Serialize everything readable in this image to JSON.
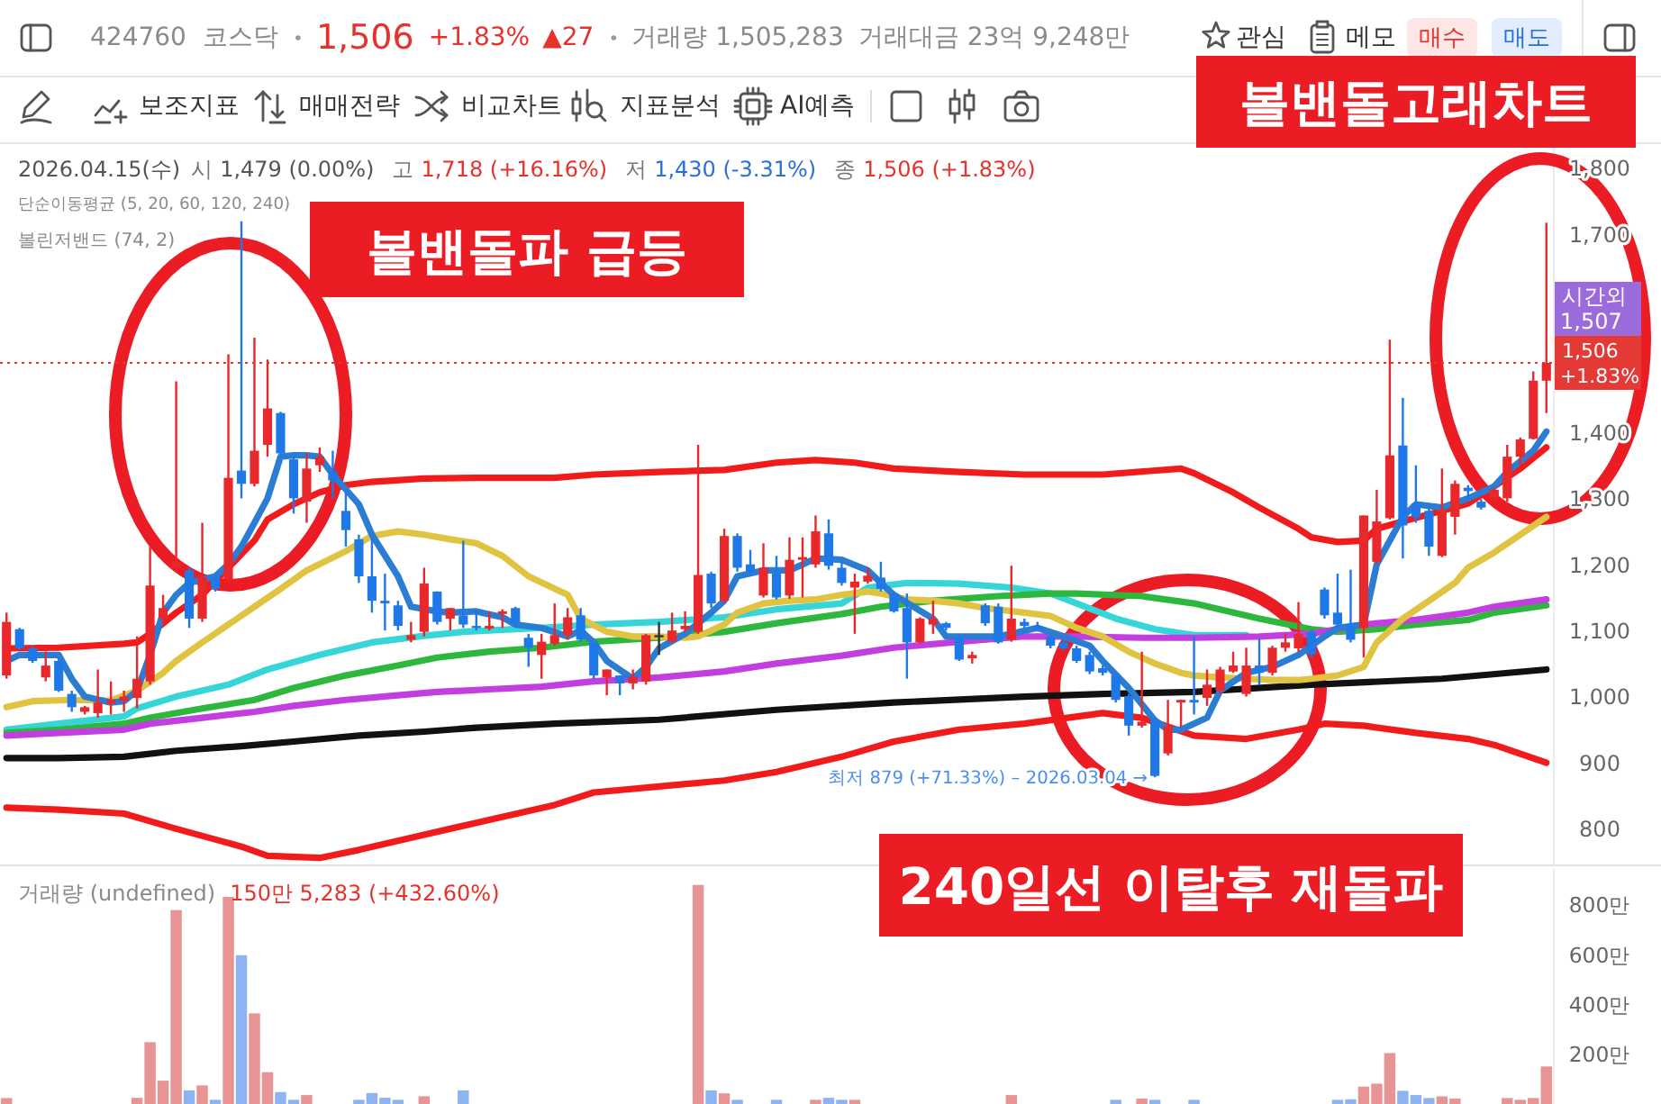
{
  "chart_data": [
    {
      "type": "other",
      "title": "볼밴돌고래차트",
      "annotations": [
        "424760",
        "코스닥",
        "1,506",
        "+1.83%",
        "▲27",
        "거래량 1,505,283",
        "거래대금 23억 9,248만",
        "관심",
        "메모",
        "매수",
        "매도",
        "보조지표",
        "매매전략",
        "비교차트",
        "지표분석",
        "AI예측",
        "2026.04.15(수)",
        "시",
        "1,479 (0.00%)",
        "고",
        "1,718 (+16.16%)",
        "저",
        "1,430 (-3.31%)",
        "종",
        "1,506 (+1.83%)"
      ]
    },
    {
      "type": "candlestick",
      "tick_labels": "y",
      "categories": [
        null,
        null,
        null,
        null,
        null,
        null,
        null,
        null,
        null,
        null,
        null,
        null,
        null,
        null,
        null,
        null,
        null,
        null,
        null,
        null,
        null,
        null,
        null,
        null,
        null,
        null,
        null,
        null,
        null,
        null,
        null,
        null,
        null,
        null,
        null,
        null,
        null,
        null,
        null,
        null,
        null,
        null,
        null,
        null,
        null,
        null,
        null,
        null,
        null,
        null,
        null,
        null,
        null,
        null,
        null,
        null,
        null,
        null,
        null,
        null,
        null,
        null,
        null,
        null,
        null,
        null,
        null,
        null,
        null,
        null,
        null,
        null,
        null,
        null,
        null,
        null,
        null,
        null,
        null,
        null,
        null,
        null,
        null,
        null,
        null,
        null,
        null,
        null,
        null,
        null,
        null,
        null,
        null,
        null,
        null,
        null,
        null,
        null,
        null,
        null,
        null,
        null,
        null,
        null,
        null,
        null,
        null,
        null,
        null,
        null,
        null,
        null,
        null,
        null,
        null,
        null,
        null,
        null,
        null
      ],
      "ohlc": [
        [
          1033,
          1128,
          1028,
          1114
        ],
        [
          1103,
          1105,
          1072,
          1074
        ],
        [
          1074,
          1078,
          1052,
          1055
        ],
        [
          1030,
          1069,
          1024,
          1048
        ],
        [
          1055,
          1057,
          1008,
          1010
        ],
        [
          1005,
          1010,
          978,
          985
        ],
        [
          978,
          987,
          974,
          985
        ],
        [
          976,
          1042,
          969,
          992
        ],
        [
          990,
          1024,
          974,
          996
        ],
        [
          995,
          1010,
          978,
          1001
        ],
        [
          999,
          1092,
          983,
          1028
        ],
        [
          1024,
          1228,
          1019,
          1169
        ],
        [
          1119,
          1155,
          1110,
          1135
        ],
        [
          1196,
          1478,
          1190,
          1205
        ],
        [
          1192,
          1196,
          1105,
          1119
        ],
        [
          1119,
          1264,
          1114,
          1182
        ],
        [
          1182,
          1187,
          1160,
          1164
        ],
        [
          1178,
          1519,
          1173,
          1332
        ],
        [
          1343,
          1720,
          1301,
          1323
        ],
        [
          1323,
          1544,
          1319,
          1373
        ],
        [
          1382,
          1511,
          1364,
          1437
        ],
        [
          1430,
          1432,
          1364,
          1369
        ],
        [
          1360,
          1364,
          1278,
          1301
        ],
        [
          1296,
          1369,
          1264,
          1346
        ],
        [
          1351,
          1378,
          1341,
          1364
        ],
        [
          1342,
          1373,
          1301,
          1328
        ],
        [
          1282,
          1310,
          1228,
          1253
        ],
        [
          1239,
          1246,
          1173,
          1183
        ],
        [
          1183,
          1242,
          1128,
          1146
        ],
        [
          1146,
          1187,
          1101,
          1142
        ],
        [
          1139,
          1146,
          1101,
          1108
        ],
        [
          1087,
          1114,
          1083,
          1094
        ],
        [
          1099,
          1196,
          1092,
          1172
        ],
        [
          1160,
          1160,
          1110,
          1114
        ],
        [
          1119,
          1135,
          1101,
          1135
        ],
        [
          1124,
          1237,
          1105,
          1110
        ],
        [
          1108,
          1133,
          1101,
          1105
        ],
        [
          1104,
          1130,
          1101,
          1108
        ],
        [
          1126,
          1133,
          1105,
          1130
        ],
        [
          1135,
          1137,
          1108,
          1112
        ],
        [
          1090,
          1096,
          1046,
          1075
        ],
        [
          1064,
          1096,
          1028,
          1084
        ],
        [
          1081,
          1142,
          1078,
          1094
        ],
        [
          1094,
          1135,
          1087,
          1121
        ],
        [
          1124,
          1135,
          1084,
          1087
        ],
        [
          1083,
          1084,
          1028,
          1033
        ],
        [
          1030,
          1042,
          1003,
          1042
        ],
        [
          1033,
          1033,
          1003,
          1021
        ],
        [
          1021,
          1042,
          1012,
          1031
        ],
        [
          1024,
          1096,
          1019,
          1094
        ],
        [
          1094,
          1114,
          1064,
          1094
        ],
        [
          1084,
          1128,
          1083,
          1101
        ],
        [
          1103,
          1130,
          1099,
          1108
        ],
        [
          1099,
          1382,
          1096,
          1185
        ],
        [
          1187,
          1190,
          1135,
          1142
        ],
        [
          1146,
          1255,
          1142,
          1244
        ],
        [
          1244,
          1248,
          1190,
          1196
        ],
        [
          1201,
          1223,
          1183,
          1190
        ],
        [
          1154,
          1233,
          1151,
          1196
        ],
        [
          1187,
          1214,
          1148,
          1151
        ],
        [
          1154,
          1242,
          1149,
          1208
        ],
        [
          1208,
          1242,
          1151,
          1212
        ],
        [
          1201,
          1275,
          1196,
          1251
        ],
        [
          1248,
          1269,
          1193,
          1199
        ],
        [
          1196,
          1205,
          1169,
          1173
        ],
        [
          1166,
          1187,
          1096,
          1175
        ],
        [
          1175,
          1196,
          1172,
          1184
        ],
        [
          1181,
          1205,
          1160,
          1164
        ],
        [
          1157,
          1160,
          1128,
          1130
        ],
        [
          1135,
          1157,
          1028,
          1083
        ],
        [
          1083,
          1121,
          1081,
          1119
        ],
        [
          1110,
          1146,
          1096,
          1119
        ],
        [
          1112,
          1114,
          1101,
          1105
        ],
        [
          1090,
          1096,
          1055,
          1057
        ],
        [
          1059,
          1069,
          1051,
          1064
        ],
        [
          1139,
          1142,
          1108,
          1112
        ],
        [
          1137,
          1142,
          1081,
          1083
        ],
        [
          1087,
          1199,
          1084,
          1119
        ],
        [
          1114,
          1119,
          1105,
          1108
        ],
        [
          1108,
          1114,
          1101,
          1103
        ],
        [
          1092,
          1096,
          1074,
          1078
        ],
        [
          1083,
          1087,
          1071,
          1074
        ],
        [
          1074,
          1078,
          1052,
          1055
        ],
        [
          1064,
          1069,
          1035,
          1039
        ],
        [
          1044,
          1048,
          1033,
          1037
        ],
        [
          1033,
          1037,
          992,
          996
        ],
        [
          1001,
          1005,
          942,
          957
        ],
        [
          957,
          1069,
          954,
          963
        ],
        [
          965,
          969,
          879,
          881
        ],
        [
          915,
          996,
          912,
          956
        ],
        [
          992,
          996,
          955,
          996
        ],
        [
          996,
          1092,
          974,
          992
        ],
        [
          999,
          1042,
          987,
          1019
        ],
        [
          1010,
          1046,
          1005,
          1042
        ],
        [
          1039,
          1069,
          1037,
          1048
        ],
        [
          1005,
          1075,
          1001,
          1048
        ],
        [
          1048,
          1090,
          1019,
          1037
        ],
        [
          1037,
          1078,
          1033,
          1075
        ],
        [
          1075,
          1096,
          1069,
          1083
        ],
        [
          1074,
          1144,
          1069,
          1096
        ],
        [
          1099,
          1103,
          1060,
          1065
        ],
        [
          1163,
          1166,
          1119,
          1124
        ],
        [
          1128,
          1187,
          1105,
          1110
        ],
        [
          1110,
          1193,
          1083,
          1087
        ],
        [
          1105,
          1275,
          1060,
          1275
        ],
        [
          1205,
          1314,
          1202,
          1266
        ],
        [
          1271,
          1541,
          1269,
          1366
        ],
        [
          1381,
          1453,
          1210,
          1260
        ],
        [
          1293,
          1351,
          1264,
          1272
        ],
        [
          1282,
          1287,
          1214,
          1228
        ],
        [
          1214,
          1346,
          1212,
          1284
        ],
        [
          1273,
          1328,
          1246,
          1323
        ],
        [
          1317,
          1321,
          1301,
          1312
        ],
        [
          1296,
          1300,
          1284,
          1287
        ],
        [
          1301,
          1317,
          1296,
          1314
        ],
        [
          1301,
          1382,
          1296,
          1364
        ],
        [
          1364,
          1393,
          1351,
          1390
        ],
        [
          1391,
          1493,
          1390,
          1479
        ],
        [
          1479,
          1718,
          1430,
          1506
        ]
      ],
      "series": [
        {
          "type": "line",
          "color": "#111111",
          "values": [
            908,
            null,
            null,
            null,
            908,
            null,
            null,
            null,
            null,
            910,
            null,
            null,
            null,
            919,
            null,
            null,
            null,
            null,
            926,
            null,
            null,
            null,
            933,
            null,
            null,
            null,
            null,
            942,
            null,
            null,
            null,
            null,
            948,
            null,
            null,
            null,
            954,
            null,
            null,
            null,
            null,
            null,
            960,
            null,
            null,
            null,
            null,
            null,
            null,
            null,
            966,
            null,
            null,
            null,
            null,
            null,
            null,
            null,
            null,
            981,
            null,
            null,
            null,
            null,
            null,
            null,
            null,
            null,
            992,
            null,
            null,
            null,
            null,
            null,
            null,
            null,
            null,
            null,
            1001,
            null,
            null,
            null,
            null,
            null,
            1005,
            null,
            null,
            null,
            null,
            null,
            null,
            1008,
            null,
            null,
            null,
            null,
            null,
            null,
            null,
            null,
            1019,
            null,
            null,
            null,
            null,
            null,
            null,
            null,
            null,
            null,
            1028,
            null,
            null,
            null,
            null,
            null,
            null,
            null,
            1042
          ]
        },
        {
          "type": "line",
          "color": "#f21b1b",
          "values": [
            833,
            null,
            null,
            null,
            830,
            null,
            null,
            null,
            null,
            824,
            null,
            null,
            null,
            801,
            null,
            null,
            null,
            null,
            774,
            null,
            760,
            null,
            null,
            null,
            757,
            null,
            null,
            769,
            null,
            null,
            null,
            null,
            792,
            null,
            null,
            null,
            810,
            null,
            null,
            null,
            null,
            null,
            837,
            null,
            null,
            856,
            null,
            null,
            null,
            null,
            865,
            null,
            null,
            null,
            null,
            874,
            null,
            null,
            null,
            887,
            null,
            null,
            null,
            null,
            910,
            null,
            null,
            null,
            933,
            null,
            null,
            null,
            null,
            951,
            null,
            null,
            null,
            null,
            960,
            null,
            null,
            null,
            null,
            null,
            976,
            null,
            null,
            969,
            null,
            null,
            null,
            942,
            null,
            null,
            null,
            937,
            null,
            null,
            null,
            951,
            null,
            960,
            null,
            null,
            957,
            null,
            null,
            null,
            946,
            null,
            null,
            null,
            937,
            null,
            928,
            null,
            null,
            null,
            901
          ]
        },
        {
          "type": "line",
          "color": "#35d5d8",
          "values": [
            951,
            null,
            null,
            null,
            960,
            null,
            null,
            null,
            null,
            971,
            983,
            null,
            null,
            1001,
            null,
            null,
            null,
            1019,
            null,
            null,
            1042,
            null,
            null,
            null,
            1064,
            null,
            null,
            null,
            1083,
            null,
            null,
            null,
            1093,
            null,
            null,
            1099,
            null,
            null,
            null,
            1103,
            null,
            1105,
            null,
            null,
            null,
            1110,
            null,
            null,
            null,
            null,
            1114,
            null,
            null,
            null,
            null,
            1121,
            null,
            null,
            null,
            1133,
            null,
            null,
            null,
            null,
            1142,
            null,
            1166,
            null,
            null,
            1173,
            null,
            null,
            null,
            1172,
            null,
            null,
            null,
            1166,
            null,
            null,
            1157,
            null,
            1142,
            null,
            null,
            1119,
            null,
            null,
            1103,
            null,
            null,
            1094,
            null,
            null,
            null,
            1094,
            null,
            null,
            null,
            null,
            null,
            null,
            null,
            null,
            null,
            null,
            null,
            null,
            null,
            null,
            null,
            null,
            null,
            null,
            null,
            null,
            null,
            null,
            null
          ]
        },
        {
          "type": "line",
          "color": "#2db83d",
          "values": [
            946,
            null,
            null,
            null,
            951,
            null,
            null,
            null,
            null,
            960,
            null,
            969,
            null,
            null,
            null,
            983,
            null,
            null,
            null,
            996,
            null,
            null,
            1014,
            null,
            null,
            null,
            1033,
            null,
            null,
            null,
            1048,
            null,
            null,
            1060,
            null,
            null,
            null,
            1069,
            null,
            null,
            null,
            1075,
            null,
            null,
            null,
            1084,
            null,
            null,
            null,
            null,
            1090,
            null,
            null,
            null,
            null,
            1099,
            null,
            null,
            null,
            1112,
            null,
            null,
            null,
            null,
            1126,
            null,
            null,
            1137,
            null,
            null,
            null,
            1146,
            null,
            null,
            null,
            null,
            1153,
            null,
            null,
            null,
            1157,
            null,
            1157,
            null,
            null,
            null,
            null,
            1153,
            null,
            null,
            null,
            1142,
            null,
            null,
            null,
            null,
            1119,
            null,
            null,
            null,
            1103,
            null,
            1099,
            null,
            null,
            1103,
            null,
            null,
            1110,
            null,
            null,
            null,
            1117,
            null,
            1128,
            null,
            null,
            null,
            1139
          ]
        },
        {
          "type": "line",
          "color": "#c23ee0",
          "values": [
            942,
            null,
            null,
            null,
            946,
            null,
            null,
            null,
            null,
            951,
            null,
            960,
            null,
            null,
            null,
            969,
            null,
            null,
            null,
            978,
            null,
            null,
            987,
            null,
            null,
            null,
            996,
            null,
            null,
            null,
            1003,
            null,
            null,
            1008,
            null,
            null,
            null,
            1012,
            null,
            null,
            null,
            1016,
            null,
            null,
            null,
            1024,
            null,
            null,
            null,
            null,
            1030,
            null,
            null,
            null,
            null,
            1039,
            null,
            null,
            null,
            1051,
            null,
            null,
            null,
            null,
            1063,
            null,
            null,
            null,
            1075,
            null,
            null,
            null,
            null,
            1084,
            null,
            null,
            null,
            null,
            1092,
            null,
            null,
            null,
            1092,
            null,
            null,
            null,
            null,
            1090,
            null,
            null,
            null,
            1090,
            null,
            null,
            null,
            null,
            1092,
            null,
            null,
            null,
            1096,
            null,
            null,
            null,
            1110,
            null,
            null,
            null,
            1117,
            null,
            null,
            null,
            1128,
            null,
            1137,
            null,
            null,
            null,
            1148
          ]
        },
        {
          "type": "line",
          "color": "#e0c340",
          "values": [
            985,
            null,
            994,
            null,
            null,
            996,
            null,
            null,
            995,
            null,
            1010,
            null,
            1037,
            1055,
            null,
            1083,
            null,
            1110,
            null,
            1137,
            null,
            1164,
            null,
            1192,
            null,
            null,
            1221,
            null,
            1244,
            null,
            1251,
            null,
            1246,
            null,
            1239,
            null,
            1233,
            null,
            1214,
            null,
            1183,
            null,
            null,
            1155,
            1119,
            null,
            1099,
            null,
            1092,
            null,
            1092,
            null,
            1090,
            1092,
            null,
            1110,
            1128,
            null,
            1142,
            null,
            1146,
            null,
            1148,
            null,
            1155,
            null,
            1160,
            1157,
            null,
            1148,
            null,
            1146,
            null,
            1142,
            null,
            1135,
            null,
            null,
            1128,
            null,
            1123,
            null,
            1105,
            null,
            1092,
            null,
            1069,
            null,
            1051,
            null,
            1037,
            1033,
            null,
            1030,
            null,
            1028,
            null,
            1026,
            null,
            1026,
            1028,
            null,
            1033,
            null,
            1046,
            1083,
            null,
            1119,
            null,
            1146,
            null,
            1173,
            1196,
            null,
            1219,
            null,
            1246,
            null,
            1273
          ]
        },
        {
          "type": "line",
          "color": "#f21b1b",
          "values": [
            1074,
            null,
            null,
            null,
            1075,
            null,
            null,
            null,
            null,
            1081,
            1083,
            1096,
            null,
            1128,
            null,
            1155,
            null,
            1196,
            null,
            1237,
            1269,
            null,
            1292,
            null,
            1310,
            null,
            1321,
            null,
            1326,
            null,
            null,
            null,
            1331,
            null,
            null,
            null,
            1332,
            null,
            null,
            null,
            null,
            null,
            1332,
            null,
            null,
            1337,
            null,
            null,
            null,
            null,
            1341,
            null,
            null,
            null,
            null,
            1344,
            null,
            null,
            null,
            1355,
            null,
            null,
            1359,
            null,
            null,
            1355,
            null,
            null,
            1346,
            null,
            null,
            null,
            null,
            1341,
            null,
            null,
            null,
            null,
            1337,
            null,
            null,
            null,
            null,
            null,
            1337,
            null,
            null,
            null,
            null,
            null,
            1346,
            1339,
            null,
            null,
            1310,
            null,
            1287,
            null,
            null,
            1255,
            1242,
            null,
            1235,
            null,
            1237,
            1255,
            null,
            1266,
            null,
            null,
            1282,
            null,
            1293,
            null,
            1319,
            null,
            1346,
            null,
            1378
          ]
        },
        {
          "type": "line",
          "color": "#2b7cd3",
          "values": [
            1055,
            1064,
            null,
            null,
            1064,
            1028,
            1001,
            null,
            992,
            994,
            1010,
            1064,
            1128,
            1155,
            1173,
            null,
            1183,
            1201,
            1228,
            1264,
            1301,
            1364,
            1366,
            1366,
            1364,
            1337,
            null,
            1292,
            1246,
            null,
            1183,
            1137,
            null,
            1130,
            1128,
            null,
            1130,
            null,
            1121,
            1110,
            null,
            1105,
            null,
            1092,
            1101,
            1083,
            1055,
            null,
            1028,
            1046,
            1074,
            null,
            1096,
            null,
            1128,
            1146,
            1183,
            null,
            1192,
            null,
            1192,
            null,
            1210,
            null,
            1208,
            null,
            1192,
            1173,
            1155,
            null,
            null,
            1119,
            1092,
            null,
            1092,
            null,
            1092,
            1096,
            null,
            1105,
            null,
            1092,
            null,
            1078,
            1055,
            null,
            1014,
            null,
            965,
            951,
            951,
            null,
            969,
            1010,
            null,
            1037,
            null,
            1046,
            null,
            1064,
            null,
            1092,
            1105,
            null,
            1110,
            1201,
            null,
            1273,
            1292,
            null,
            1287,
            null,
            1301,
            null,
            1319,
            1341,
            null,
            1373,
            1402
          ]
        }
      ],
      "ylim": [
        747,
        1837
      ],
      "yticks": [
        800,
        900,
        {
          "value": 1000,
          "label": "1,000"
        },
        {
          "value": 1100,
          "label": "1,100"
        },
        {
          "value": 1200,
          "label": "1,200"
        },
        {
          "value": 1300,
          "label": "1,300"
        },
        {
          "value": 1400,
          "label": "1,400"
        },
        {
          "value": 1700,
          "label": "1,700"
        },
        {
          "value": 1800,
          "label": "1,800"
        }
      ],
      "ref_lines": [
        {
          "axis": "y",
          "value": 1506,
          "label": "1,506 +1.83%",
          "color": "#e53935",
          "line_style": "dotted"
        }
      ],
      "annotations": [
        "단순이동평균 (5, 20, 60, 120, 240)",
        "볼린저밴드 (74, 2)",
        "볼밴돌파 급등",
        "240일선 이탈후 재돌파",
        "최저 879 (+71.33%) – 2026.03.04 →",
        "시간외 1,507"
      ]
    },
    {
      "type": "bar",
      "tick_labels": "y",
      "categories": [
        null,
        null,
        null,
        null,
        null,
        null,
        null,
        null,
        null,
        null,
        null,
        null,
        null,
        null,
        null,
        null,
        null,
        null,
        null,
        null,
        null,
        null,
        null,
        null,
        null,
        null,
        null,
        null,
        null,
        null,
        null,
        null,
        null,
        null,
        null,
        null,
        null,
        null,
        null,
        null,
        null,
        null,
        null,
        null,
        null,
        null,
        null,
        null,
        null,
        null,
        null,
        null,
        null,
        null,
        null,
        null,
        null,
        null,
        null,
        null,
        null,
        null,
        null,
        null,
        null,
        null,
        null,
        null,
        null,
        null,
        null,
        null,
        null,
        null,
        null,
        null,
        null,
        null,
        null,
        null,
        null,
        null,
        null,
        null,
        null,
        null,
        null,
        null,
        null,
        null,
        null,
        null,
        null,
        null,
        null,
        null,
        null,
        null,
        null,
        null,
        null,
        null,
        null,
        null,
        null,
        null,
        null,
        null,
        null,
        null,
        null,
        null,
        null,
        null,
        null,
        null,
        null,
        null,
        null
      ],
      "values": [
        24,
        null,
        null,
        null,
        null,
        null,
        null,
        null,
        null,
        null,
        25,
        249,
        94,
        781,
        55,
        75,
        17,
        834,
        599,
        365,
        128,
        48,
        17,
        36,
        null,
        null,
        null,
        17,
        44,
        25,
        17,
        null,
        31,
        null,
        null,
        55,
        null,
        null,
        null,
        null,
        null,
        null,
        null,
        null,
        null,
        null,
        null,
        null,
        null,
        null,
        null,
        null,
        null,
        882,
        55,
        43,
        17,
        null,
        null,
        17,
        null,
        null,
        17,
        25,
        17,
        17,
        null,
        null,
        null,
        null,
        null,
        null,
        null,
        null,
        null,
        null,
        null,
        36,
        null,
        null,
        null,
        null,
        null,
        null,
        null,
        17,
        null,
        22,
        17,
        null,
        null,
        17,
        null,
        null,
        null,
        null,
        null,
        null,
        null,
        null,
        null,
        null,
        17,
        19,
        70,
        82,
        205,
        53,
        36,
        24,
        31,
        22,
        null,
        null,
        null,
        24,
        17,
        24,
        151
      ],
      "colors": [
        "#e99494",
        null,
        null,
        null,
        null,
        null,
        null,
        null,
        null,
        null,
        "#e99494",
        "#e99494",
        "#e99494",
        "#e99494",
        "#8db4f0",
        "#e99494",
        "#8db4f0",
        "#e99494",
        "#8db4f0",
        "#e99494",
        "#e99494",
        "#8db4f0",
        "#8db4f0",
        "#e99494",
        null,
        null,
        null,
        "#8db4f0",
        "#8db4f0",
        "#8db4f0",
        "#8db4f0",
        null,
        "#e99494",
        null,
        null,
        "#8db4f0",
        null,
        null,
        null,
        null,
        null,
        null,
        null,
        null,
        null,
        null,
        null,
        null,
        null,
        null,
        null,
        null,
        null,
        "#e99494",
        "#8db4f0",
        "#e99494",
        "#8db4f0",
        null,
        null,
        "#8db4f0",
        null,
        null,
        "#e99494",
        "#8db4f0",
        "#8db4f0",
        "#e99494",
        null,
        null,
        null,
        null,
        null,
        null,
        null,
        null,
        null,
        null,
        null,
        "#e99494",
        null,
        null,
        null,
        null,
        null,
        null,
        null,
        "#8db4f0",
        null,
        "#e99494",
        "#8db4f0",
        null,
        null,
        "#8db4f0",
        null,
        null,
        null,
        null,
        null,
        null,
        null,
        null,
        null,
        null,
        "#8db4f0",
        "#8db4f0",
        "#e99494",
        "#e99494",
        "#e99494",
        "#8db4f0",
        "#8db4f0",
        "#8db4f0",
        "#e99494",
        "#e99494",
        null,
        null,
        null,
        "#e99494",
        "#e99494",
        "#e99494",
        "#e99494"
      ],
      "ylim": [
        0,
        950
      ],
      "yticks": [
        {
          "value": 200,
          "label": "200만"
        },
        {
          "value": 400,
          "label": "400만"
        },
        {
          "value": 600,
          "label": "600만"
        },
        {
          "value": 800,
          "label": "800만"
        }
      ],
      "annotations": [
        "거래량 (undefined)",
        "150만 5,283 (+432.60%)"
      ]
    }
  ]
}
